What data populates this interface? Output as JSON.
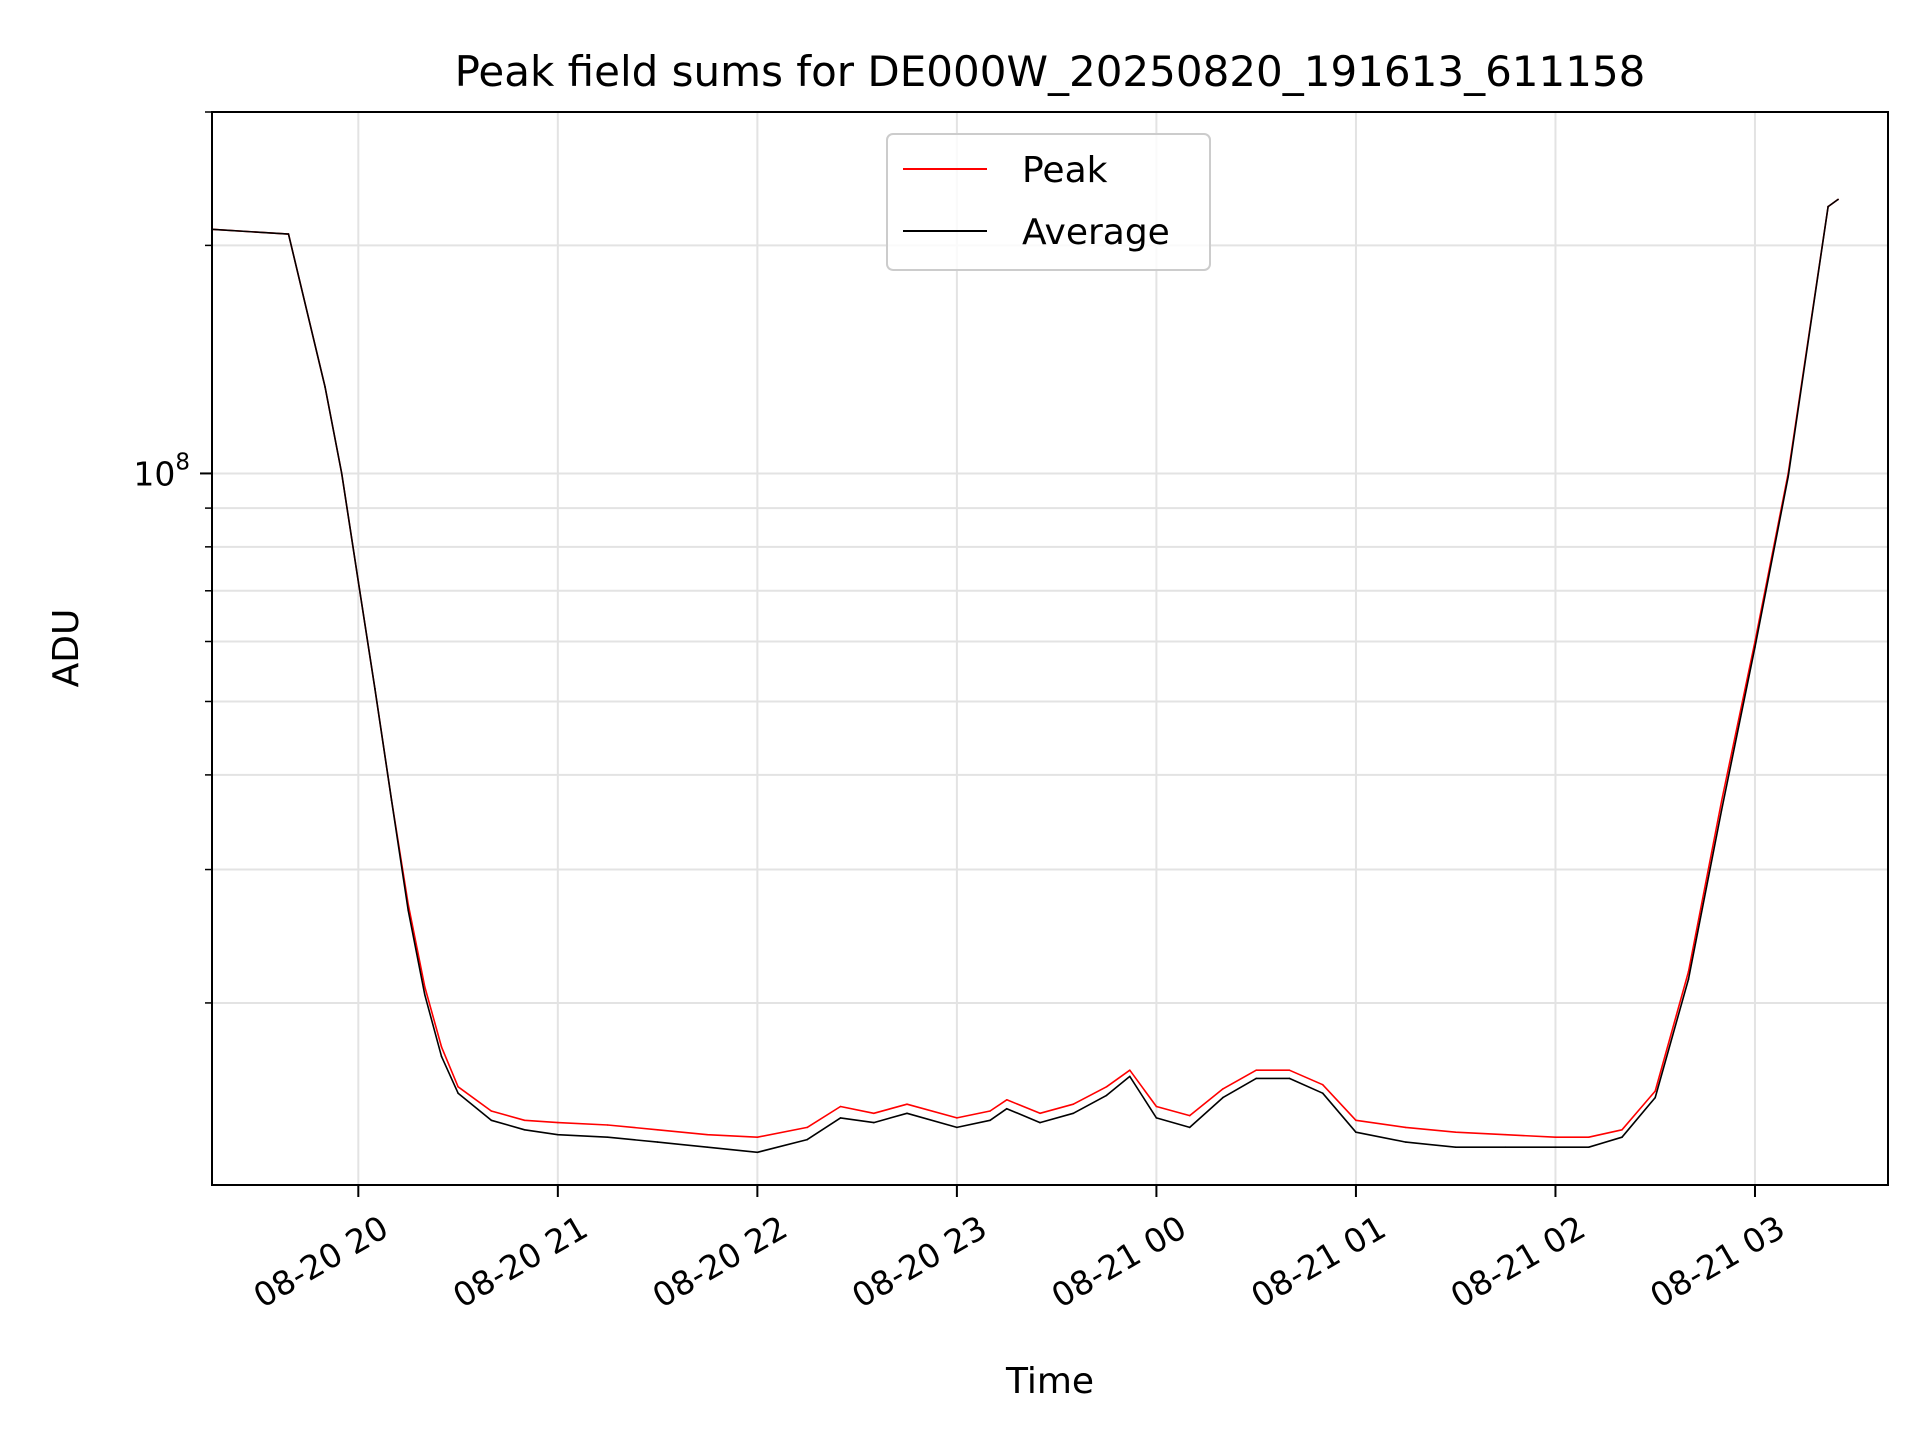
{
  "chart_data": {
    "type": "line",
    "title": "Peak field sums for DE000W_20250820_191613_611158",
    "xlabel": "Time",
    "ylabel": "ADU",
    "yscale": "log",
    "ylim": [
      11500000,
      300000000
    ],
    "xlim": [
      "2025-08-20 19:16",
      "2025-08-21 03:40"
    ],
    "grid": true,
    "legend": "upper center",
    "x_ticks": [
      {
        "label": "08-20 20",
        "time": "2025-08-20 20:00"
      },
      {
        "label": "08-20 21",
        "time": "2025-08-20 21:00"
      },
      {
        "label": "08-20 22",
        "time": "2025-08-20 22:00"
      },
      {
        "label": "08-20 23",
        "time": "2025-08-20 23:00"
      },
      {
        "label": "08-21 00",
        "time": "2025-08-21 00:00"
      },
      {
        "label": "08-21 01",
        "time": "2025-08-21 01:00"
      },
      {
        "label": "08-21 02",
        "time": "2025-08-21 02:00"
      },
      {
        "label": "08-21 03",
        "time": "2025-08-21 03:00"
      }
    ],
    "y_ticks": [
      {
        "value": 100000000,
        "base": "10",
        "exp": "8"
      }
    ],
    "series": [
      {
        "name": "Peak",
        "color": "#ff0000",
        "points": [
          [
            "2025-08-20 19:16",
            210000000
          ],
          [
            "2025-08-20 19:39",
            207000000
          ],
          [
            "2025-08-20 19:50",
            130000000
          ],
          [
            "2025-08-20 19:55",
            100000000
          ],
          [
            "2025-08-20 20:00",
            72000000
          ],
          [
            "2025-08-20 20:05",
            52000000
          ],
          [
            "2025-08-20 20:10",
            37000000
          ],
          [
            "2025-08-20 20:15",
            27000000
          ],
          [
            "2025-08-20 20:20",
            21000000
          ],
          [
            "2025-08-20 20:25",
            17500000
          ],
          [
            "2025-08-20 20:30",
            15500000
          ],
          [
            "2025-08-20 20:40",
            14400000
          ],
          [
            "2025-08-20 20:50",
            14000000
          ],
          [
            "2025-08-20 21:00",
            13900000
          ],
          [
            "2025-08-20 21:15",
            13800000
          ],
          [
            "2025-08-20 21:30",
            13600000
          ],
          [
            "2025-08-20 21:45",
            13400000
          ],
          [
            "2025-08-20 22:00",
            13300000
          ],
          [
            "2025-08-20 22:15",
            13700000
          ],
          [
            "2025-08-20 22:25",
            14600000
          ],
          [
            "2025-08-20 22:35",
            14300000
          ],
          [
            "2025-08-20 22:45",
            14700000
          ],
          [
            "2025-08-20 23:00",
            14100000
          ],
          [
            "2025-08-20 23:10",
            14400000
          ],
          [
            "2025-08-20 23:15",
            14900000
          ],
          [
            "2025-08-20 23:25",
            14300000
          ],
          [
            "2025-08-20 23:35",
            14700000
          ],
          [
            "2025-08-20 23:45",
            15500000
          ],
          [
            "2025-08-20 23:52",
            16300000
          ],
          [
            "2025-08-21 00:00",
            14600000
          ],
          [
            "2025-08-21 00:10",
            14200000
          ],
          [
            "2025-08-21 00:20",
            15400000
          ],
          [
            "2025-08-21 00:30",
            16300000
          ],
          [
            "2025-08-21 00:40",
            16300000
          ],
          [
            "2025-08-21 00:50",
            15600000
          ],
          [
            "2025-08-21 01:00",
            14000000
          ],
          [
            "2025-08-21 01:15",
            13700000
          ],
          [
            "2025-08-21 01:30",
            13500000
          ],
          [
            "2025-08-21 01:45",
            13400000
          ],
          [
            "2025-08-21 02:00",
            13300000
          ],
          [
            "2025-08-21 02:10",
            13300000
          ],
          [
            "2025-08-21 02:20",
            13600000
          ],
          [
            "2025-08-21 02:30",
            15300000
          ],
          [
            "2025-08-21 02:40",
            22000000
          ],
          [
            "2025-08-21 02:50",
            37000000
          ],
          [
            "2025-08-21 03:00",
            60000000
          ],
          [
            "2025-08-21 03:10",
            100000000
          ],
          [
            "2025-08-21 03:22",
            225000000
          ],
          [
            "2025-08-21 03:25",
            230000000
          ]
        ]
      },
      {
        "name": "Average",
        "color": "#000000",
        "points": [
          [
            "2025-08-20 19:16",
            210000000
          ],
          [
            "2025-08-20 19:39",
            207000000
          ],
          [
            "2025-08-20 19:50",
            130000000
          ],
          [
            "2025-08-20 19:55",
            100000000
          ],
          [
            "2025-08-20 20:00",
            72000000
          ],
          [
            "2025-08-20 20:05",
            52000000
          ],
          [
            "2025-08-20 20:10",
            37000000
          ],
          [
            "2025-08-20 20:15",
            26500000
          ],
          [
            "2025-08-20 20:20",
            20500000
          ],
          [
            "2025-08-20 20:25",
            17000000
          ],
          [
            "2025-08-20 20:30",
            15200000
          ],
          [
            "2025-08-20 20:40",
            14000000
          ],
          [
            "2025-08-20 20:50",
            13600000
          ],
          [
            "2025-08-20 21:00",
            13400000
          ],
          [
            "2025-08-20 21:15",
            13300000
          ],
          [
            "2025-08-20 21:30",
            13100000
          ],
          [
            "2025-08-20 21:45",
            12900000
          ],
          [
            "2025-08-20 22:00",
            12700000
          ],
          [
            "2025-08-20 22:15",
            13200000
          ],
          [
            "2025-08-20 22:25",
            14100000
          ],
          [
            "2025-08-20 22:35",
            13900000
          ],
          [
            "2025-08-20 22:45",
            14300000
          ],
          [
            "2025-08-20 23:00",
            13700000
          ],
          [
            "2025-08-20 23:10",
            14000000
          ],
          [
            "2025-08-20 23:15",
            14500000
          ],
          [
            "2025-08-20 23:25",
            13900000
          ],
          [
            "2025-08-20 23:35",
            14300000
          ],
          [
            "2025-08-20 23:45",
            15100000
          ],
          [
            "2025-08-20 23:52",
            16000000
          ],
          [
            "2025-08-21 00:00",
            14100000
          ],
          [
            "2025-08-21 00:10",
            13700000
          ],
          [
            "2025-08-21 00:20",
            15000000
          ],
          [
            "2025-08-21 00:30",
            15900000
          ],
          [
            "2025-08-21 00:40",
            15900000
          ],
          [
            "2025-08-21 00:50",
            15200000
          ],
          [
            "2025-08-21 01:00",
            13500000
          ],
          [
            "2025-08-21 01:15",
            13100000
          ],
          [
            "2025-08-21 01:30",
            12900000
          ],
          [
            "2025-08-21 01:45",
            12900000
          ],
          [
            "2025-08-21 02:00",
            12900000
          ],
          [
            "2025-08-21 02:10",
            12900000
          ],
          [
            "2025-08-21 02:20",
            13300000
          ],
          [
            "2025-08-21 02:30",
            15000000
          ],
          [
            "2025-08-21 02:40",
            21500000
          ],
          [
            "2025-08-21 02:50",
            36000000
          ],
          [
            "2025-08-21 03:00",
            59000000
          ],
          [
            "2025-08-21 03:10",
            99000000
          ],
          [
            "2025-08-21 03:22",
            225000000
          ],
          [
            "2025-08-21 03:25",
            230000000
          ]
        ]
      }
    ]
  }
}
